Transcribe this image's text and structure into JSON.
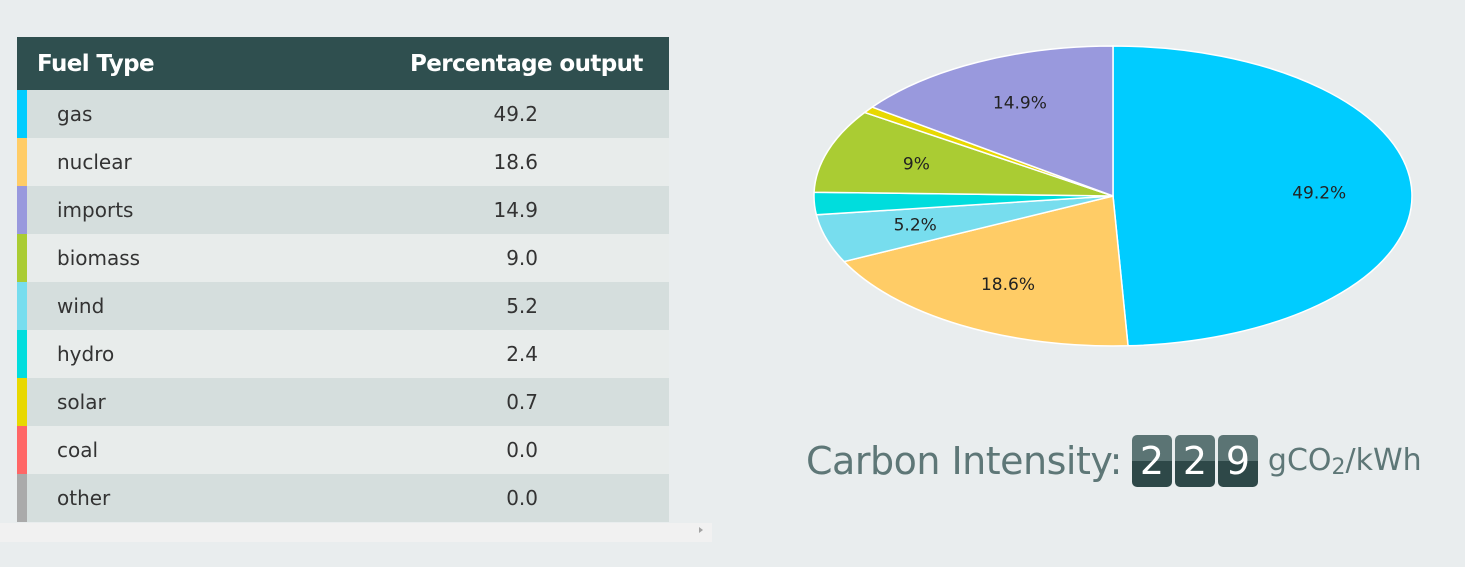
{
  "table": {
    "headers": {
      "fuel": "Fuel Type",
      "pct": "Percentage output"
    },
    "rows": [
      {
        "name": "gas",
        "value": "49.2",
        "color": "#00ccff"
      },
      {
        "name": "nuclear",
        "value": "18.6",
        "color": "#ffcc66"
      },
      {
        "name": "imports",
        "value": "14.9",
        "color": "#9999dd"
      },
      {
        "name": "biomass",
        "value": "9.0",
        "color": "#aacc33"
      },
      {
        "name": "wind",
        "value": "5.2",
        "color": "#77ddee"
      },
      {
        "name": "hydro",
        "value": "2.4",
        "color": "#00dddd"
      },
      {
        "name": "solar",
        "value": "0.7",
        "color": "#e8d800"
      },
      {
        "name": "coal",
        "value": "0.0",
        "color": "#ff6666"
      },
      {
        "name": "other",
        "value": "0.0",
        "color": "#aaaaaa"
      }
    ]
  },
  "chart_data": {
    "type": "pie",
    "slices": [
      {
        "name": "gas",
        "value": 49.2,
        "label": "49.2%",
        "color": "#00ccff"
      },
      {
        "name": "nuclear",
        "value": 18.6,
        "label": "18.6%",
        "color": "#ffcc66"
      },
      {
        "name": "wind",
        "value": 5.2,
        "label": "5.2%",
        "color": "#77ddee"
      },
      {
        "name": "hydro",
        "value": 2.4,
        "label": "",
        "color": "#00dddd"
      },
      {
        "name": "biomass",
        "value": 9.0,
        "label": "9%",
        "color": "#aacc33"
      },
      {
        "name": "solar",
        "value": 0.7,
        "label": "",
        "color": "#e8d800"
      },
      {
        "name": "imports",
        "value": 14.9,
        "label": "14.9%",
        "color": "#9999dd"
      }
    ]
  },
  "carbon": {
    "label": "Carbon Intensity:",
    "digits": [
      "2",
      "2",
      "9"
    ],
    "unit_prefix": "gCO",
    "unit_sub": "2",
    "unit_suffix": "/kWh"
  }
}
